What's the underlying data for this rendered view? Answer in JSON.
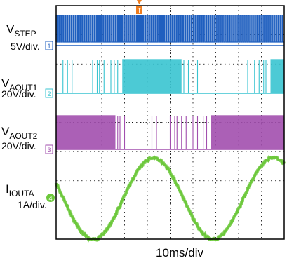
{
  "labels": {
    "vstep_base": "V",
    "vstep_sub": "STEP",
    "vstep_scale": "5V/div.",
    "vaout1_base": "V",
    "vaout1_sub": "AOUT1",
    "vaout1_scale": "20V/div.",
    "vaout2_base": "V",
    "vaout2_sub": "AOUT2",
    "vaout2_scale": "20V/div.",
    "iout_base": "I",
    "iout_sub": "IOUTA",
    "iout_scale": "1A/div.",
    "time_scale": "10ms/div"
  },
  "markers": {
    "ch1": "1",
    "ch2": "2",
    "ch3": "3",
    "ch4": "4",
    "trigger": "T"
  },
  "colors": {
    "vstep": "#1f5fbf",
    "vaout1": "#39c4d0",
    "vaout2": "#a24fae",
    "iouta": "#6cc83b",
    "trigger": "#f07d1e",
    "background": "#ffffff",
    "frame": "#000000",
    "grid": "#000000"
  },
  "chart_data": {
    "type": "line",
    "grid": true,
    "time_per_division": "10ms/div",
    "series": [
      {
        "name": "VSTEP",
        "scale": "5V/div.",
        "kind": "step-pulse-train"
      },
      {
        "name": "VAOUT1",
        "scale": "20V/div.",
        "kind": "pwm-bursts",
        "dense_fraction_windows": [
          [
            0.29,
            0.55
          ],
          [
            0.94,
            1.0
          ]
        ]
      },
      {
        "name": "VAOUT2",
        "scale": "20V/div.",
        "kind": "pwm-bursts",
        "dense_fraction_windows": [
          [
            0.0,
            0.26
          ],
          [
            0.68,
            1.0
          ]
        ]
      },
      {
        "name": "IIOUTA",
        "scale": "1A/div.",
        "kind": "sine",
        "cycles_shown": 1.9
      }
    ]
  }
}
